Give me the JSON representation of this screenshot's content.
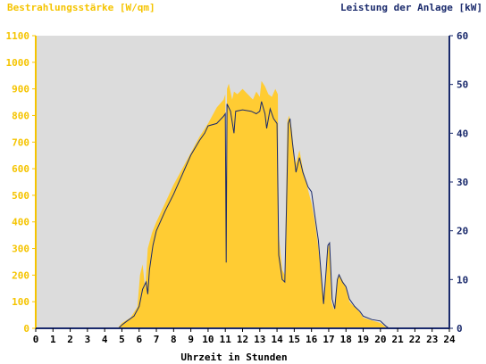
{
  "chart_data": {
    "type": "area",
    "title_left": "Bestrahlungsstärke [W/qm]",
    "title_right": "Leistung der Anlage [kW]",
    "xlabel": "Uhrzeit in Stunden",
    "xlim": [
      0,
      24
    ],
    "ylim_left": [
      0,
      1100
    ],
    "ylim_right": [
      0,
      60
    ],
    "x_ticks": [
      "0",
      "1",
      "2",
      "3",
      "4",
      "5",
      "6",
      "7",
      "8",
      "9",
      "10",
      "11",
      "12",
      "13",
      "14",
      "15",
      "16",
      "17",
      "18",
      "19",
      "20",
      "21",
      "22",
      "23",
      "24"
    ],
    "y_ticks_left": [
      "0",
      "100",
      "200",
      "300",
      "400",
      "500",
      "600",
      "700",
      "800",
      "900",
      "1000",
      "1100"
    ],
    "y_ticks_right": [
      "0",
      "10",
      "20",
      "30",
      "40",
      "50",
      "60"
    ],
    "grid": false,
    "colors": {
      "plot_background": "#dcdcdc",
      "irradiance_fill": "#ffcc33",
      "power_line": "#1a2a6c",
      "left_axis_text": "#f5c400",
      "right_axis_text": "#1a2a6c",
      "axis_text": "#000000"
    },
    "series": [
      {
        "axis": "left",
        "style": "area",
        "points": [
          [
            0,
            0
          ],
          [
            4.75,
            0
          ],
          [
            5.0,
            20
          ],
          [
            5.5,
            40
          ],
          [
            5.9,
            80
          ],
          [
            6.05,
            200
          ],
          [
            6.2,
            240
          ],
          [
            6.35,
            150
          ],
          [
            6.5,
            300
          ],
          [
            6.75,
            360
          ],
          [
            7.0,
            400
          ],
          [
            7.5,
            470
          ],
          [
            8.0,
            540
          ],
          [
            8.5,
            600
          ],
          [
            9.0,
            660
          ],
          [
            9.5,
            720
          ],
          [
            10.0,
            770
          ],
          [
            10.5,
            830
          ],
          [
            10.9,
            860
          ],
          [
            11.0,
            880
          ],
          [
            11.05,
            250
          ],
          [
            11.1,
            900
          ],
          [
            11.2,
            920
          ],
          [
            11.4,
            860
          ],
          [
            11.5,
            890
          ],
          [
            11.7,
            880
          ],
          [
            12.0,
            900
          ],
          [
            12.3,
            880
          ],
          [
            12.6,
            860
          ],
          [
            12.8,
            890
          ],
          [
            13.0,
            870
          ],
          [
            13.1,
            930
          ],
          [
            13.3,
            910
          ],
          [
            13.5,
            880
          ],
          [
            13.7,
            870
          ],
          [
            13.9,
            900
          ],
          [
            14.05,
            880
          ],
          [
            14.1,
            350
          ],
          [
            14.3,
            220
          ],
          [
            14.45,
            200
          ],
          [
            14.6,
            780
          ],
          [
            14.7,
            800
          ],
          [
            14.85,
            750
          ],
          [
            15.0,
            650
          ],
          [
            15.1,
            620
          ],
          [
            15.3,
            670
          ],
          [
            15.5,
            600
          ],
          [
            15.8,
            520
          ],
          [
            16.0,
            470
          ],
          [
            16.2,
            400
          ],
          [
            16.4,
            300
          ],
          [
            16.7,
            120
          ],
          [
            16.85,
            200
          ],
          [
            16.95,
            300
          ],
          [
            17.05,
            320
          ],
          [
            17.15,
            100
          ],
          [
            17.3,
            70
          ],
          [
            17.5,
            180
          ],
          [
            17.6,
            200
          ],
          [
            17.8,
            180
          ],
          [
            18.0,
            150
          ],
          [
            18.2,
            100
          ],
          [
            18.5,
            80
          ],
          [
            18.8,
            60
          ],
          [
            19.0,
            40
          ],
          [
            19.5,
            30
          ],
          [
            20.0,
            20
          ],
          [
            20.3,
            5
          ],
          [
            20.5,
            0
          ],
          [
            24,
            0
          ]
        ]
      },
      {
        "axis": "right",
        "style": "line",
        "points": [
          [
            0,
            0
          ],
          [
            4.8,
            0
          ],
          [
            5.0,
            0.7
          ],
          [
            5.3,
            1.5
          ],
          [
            5.7,
            2.5
          ],
          [
            6.0,
            4.5
          ],
          [
            6.2,
            8.0
          ],
          [
            6.4,
            9.5
          ],
          [
            6.5,
            7.0
          ],
          [
            6.6,
            12.0
          ],
          [
            6.8,
            17.0
          ],
          [
            7.0,
            20.0
          ],
          [
            7.5,
            24.0
          ],
          [
            8.0,
            27.5
          ],
          [
            8.5,
            31.5
          ],
          [
            9.0,
            35.5
          ],
          [
            9.5,
            38.5
          ],
          [
            9.8,
            40.0
          ],
          [
            10.0,
            41.5
          ],
          [
            10.5,
            42.0
          ],
          [
            10.9,
            43.5
          ],
          [
            11.0,
            44.0
          ],
          [
            11.05,
            13.5
          ],
          [
            11.1,
            46.0
          ],
          [
            11.3,
            44.5
          ],
          [
            11.5,
            40.0
          ],
          [
            11.6,
            44.5
          ],
          [
            12.0,
            44.8
          ],
          [
            12.5,
            44.5
          ],
          [
            12.8,
            44.0
          ],
          [
            13.0,
            44.5
          ],
          [
            13.1,
            46.5
          ],
          [
            13.3,
            44.0
          ],
          [
            13.4,
            41.0
          ],
          [
            13.6,
            45.0
          ],
          [
            13.8,
            43.0
          ],
          [
            14.0,
            42.0
          ],
          [
            14.1,
            15.0
          ],
          [
            14.3,
            10.0
          ],
          [
            14.45,
            9.5
          ],
          [
            14.55,
            25.0
          ],
          [
            14.65,
            42.0
          ],
          [
            14.75,
            43.0
          ],
          [
            14.9,
            38.0
          ],
          [
            15.0,
            35.0
          ],
          [
            15.1,
            32.0
          ],
          [
            15.3,
            35.0
          ],
          [
            15.5,
            32.0
          ],
          [
            15.8,
            29.0
          ],
          [
            16.0,
            28.0
          ],
          [
            16.2,
            23.0
          ],
          [
            16.4,
            18.0
          ],
          [
            16.7,
            5.0
          ],
          [
            16.85,
            12.0
          ],
          [
            16.95,
            17.0
          ],
          [
            17.05,
            17.5
          ],
          [
            17.2,
            6.0
          ],
          [
            17.35,
            4.0
          ],
          [
            17.5,
            10.0
          ],
          [
            17.6,
            11.0
          ],
          [
            17.8,
            9.5
          ],
          [
            18.0,
            8.5
          ],
          [
            18.2,
            6.0
          ],
          [
            18.5,
            4.5
          ],
          [
            18.8,
            3.5
          ],
          [
            19.0,
            2.5
          ],
          [
            19.5,
            1.8
          ],
          [
            20.0,
            1.5
          ],
          [
            20.3,
            0.5
          ],
          [
            20.5,
            0
          ],
          [
            24,
            0
          ]
        ]
      }
    ]
  }
}
